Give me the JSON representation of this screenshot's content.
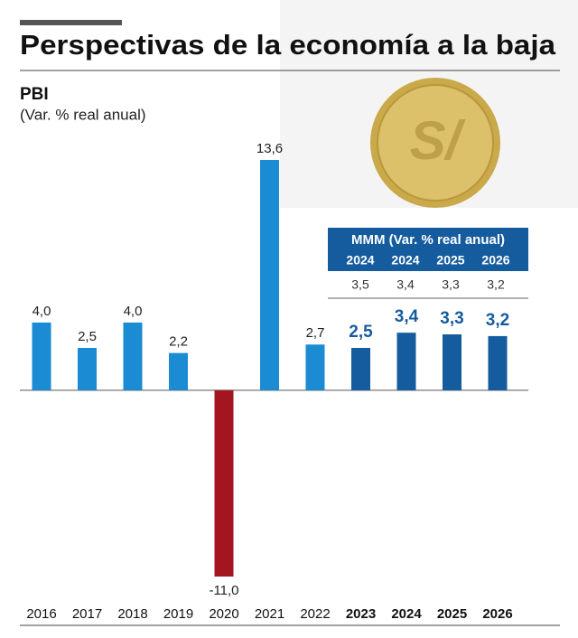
{
  "chart_data": {
    "type": "bar",
    "title": "Perspectivas de la economía a la baja",
    "subtitle": "PBI",
    "unit_label": "(Var. % real anual)",
    "categories": [
      "2016",
      "2017",
      "2018",
      "2019",
      "2020",
      "2021",
      "2022",
      "2023",
      "2024",
      "2025",
      "2026"
    ],
    "values": [
      4.0,
      2.5,
      4.0,
      2.2,
      -11.0,
      13.6,
      2.7,
      2.5,
      3.4,
      3.3,
      3.2
    ],
    "value_labels": [
      "4,0",
      "2,5",
      "4,0",
      "2,2",
      "-11,0",
      "13,6",
      "2,7",
      "2,5",
      "3,4",
      "3,3",
      "3,2"
    ],
    "colors": [
      "#1b8bd3",
      "#1b8bd3",
      "#1b8bd3",
      "#1b8bd3",
      "#a3151f",
      "#1b8bd3",
      "#1b8bd3",
      "#155c9f",
      "#155c9f",
      "#155c9f",
      "#155c9f"
    ],
    "bold_labels": [
      false,
      false,
      false,
      false,
      false,
      false,
      false,
      true,
      true,
      true,
      true
    ],
    "icon_text": "S/",
    "table": {
      "title": "MMM (Var. % real anual)",
      "header": [
        "2024",
        "2024",
        "2025",
        "2026"
      ],
      "rows": [
        [
          "3,5",
          "3,4",
          "3,3",
          "3,2"
        ]
      ]
    }
  }
}
